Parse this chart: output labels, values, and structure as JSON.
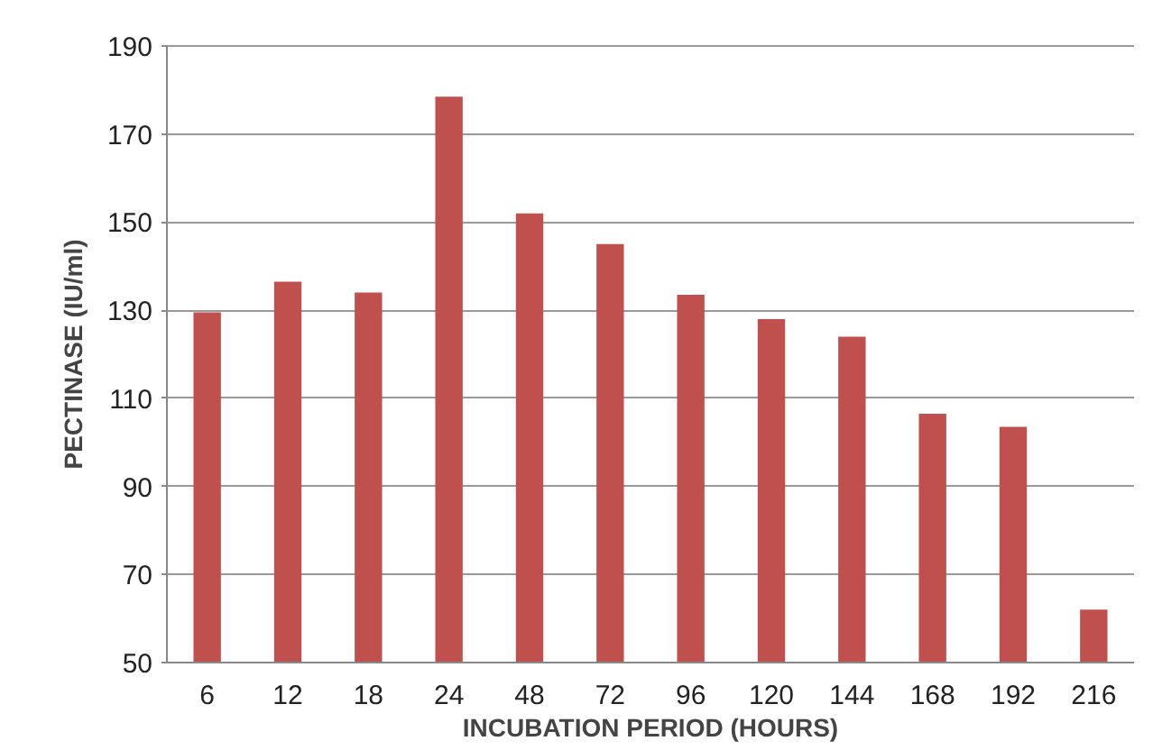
{
  "chart_data": {
    "type": "bar",
    "xlabel": "INCUBATION PERIOD (HOURS)",
    "ylabel": "PECTINASE (IU/ml)",
    "categories": [
      "6",
      "12",
      "18",
      "24",
      "48",
      "72",
      "96",
      "120",
      "144",
      "168",
      "192",
      "216"
    ],
    "values": [
      129.5,
      136.5,
      134,
      178.5,
      152,
      145,
      133.5,
      128,
      124,
      106.5,
      103.5,
      62
    ],
    "color": "#c0504d",
    "ylim": [
      50,
      190
    ],
    "yticks": [
      50,
      70,
      90,
      110,
      130,
      150,
      170,
      190
    ],
    "grid": "y"
  }
}
